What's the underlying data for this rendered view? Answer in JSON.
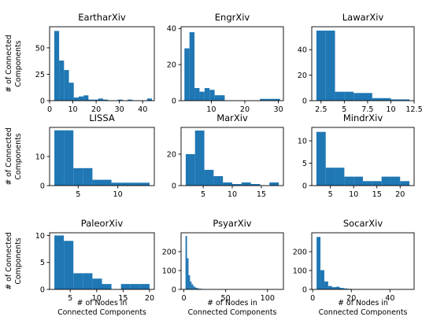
{
  "colors": {
    "bar": "#1f77b4",
    "axis": "#000000",
    "background": "#ffffff"
  },
  "shared_labels": {
    "ylabel_lines": [
      "# of Connected",
      "Components"
    ],
    "xlabel_lines": [
      "# of Nodes in",
      "Connected Components"
    ]
  },
  "chart_data": [
    {
      "type": "bar",
      "title": "EartharXiv",
      "xlim": [
        0,
        45
      ],
      "ylim": [
        0,
        70
      ],
      "xticks": [
        0,
        10,
        20,
        30,
        40
      ],
      "yticks": [
        0,
        25,
        50
      ],
      "bins": [
        {
          "x0": 2,
          "x1": 4.1,
          "y": 66
        },
        {
          "x0": 4.1,
          "x1": 6.2,
          "y": 38
        },
        {
          "x0": 6.2,
          "x1": 8.3,
          "y": 29
        },
        {
          "x0": 8.3,
          "x1": 10.4,
          "y": 17
        },
        {
          "x0": 10.4,
          "x1": 12.5,
          "y": 3
        },
        {
          "x0": 12.5,
          "x1": 14.6,
          "y": 4
        },
        {
          "x0": 14.6,
          "x1": 16.7,
          "y": 5
        },
        {
          "x0": 16.7,
          "x1": 18.8,
          "y": 1
        },
        {
          "x0": 18.8,
          "x1": 20.9,
          "y": 1
        },
        {
          "x0": 20.9,
          "x1": 23,
          "y": 2
        },
        {
          "x0": 23,
          "x1": 25.1,
          "y": 1
        },
        {
          "x0": 29.3,
          "x1": 31.4,
          "y": 1
        },
        {
          "x0": 33.5,
          "x1": 35.6,
          "y": 1
        },
        {
          "x0": 41.9,
          "x1": 44,
          "y": 2
        }
      ]
    },
    {
      "type": "bar",
      "title": "EngrXiv",
      "xlim": [
        1,
        31.5
      ],
      "ylim": [
        0,
        41
      ],
      "xticks": [
        10,
        20,
        30
      ],
      "yticks": [
        0,
        20,
        40
      ],
      "bins": [
        {
          "x0": 2,
          "x1": 3.5,
          "y": 29
        },
        {
          "x0": 3.5,
          "x1": 5,
          "y": 38
        },
        {
          "x0": 5,
          "x1": 6.5,
          "y": 7
        },
        {
          "x0": 6.5,
          "x1": 8,
          "y": 5
        },
        {
          "x0": 8,
          "x1": 9.5,
          "y": 7
        },
        {
          "x0": 9.5,
          "x1": 11,
          "y": 6
        },
        {
          "x0": 11,
          "x1": 12.5,
          "y": 3
        },
        {
          "x0": 12.5,
          "x1": 14,
          "y": 3
        },
        {
          "x0": 24.5,
          "x1": 26,
          "y": 1
        },
        {
          "x0": 26,
          "x1": 27.5,
          "y": 1
        },
        {
          "x0": 27.5,
          "x1": 29,
          "y": 1
        },
        {
          "x0": 29,
          "x1": 30.5,
          "y": 1
        }
      ]
    },
    {
      "type": "bar",
      "title": "LawarXiv",
      "xlim": [
        1.5,
        12.5
      ],
      "ylim": [
        0,
        58
      ],
      "xticks": [
        2.5,
        5.0,
        7.5,
        10.0,
        12.5
      ],
      "yticks": [
        0,
        20,
        40
      ],
      "bins": [
        {
          "x0": 2,
          "x1": 3,
          "y": 55
        },
        {
          "x0": 3,
          "x1": 4,
          "y": 55
        },
        {
          "x0": 4,
          "x1": 5,
          "y": 7
        },
        {
          "x0": 5,
          "x1": 6,
          "y": 7
        },
        {
          "x0": 6,
          "x1": 7,
          "y": 6
        },
        {
          "x0": 7,
          "x1": 8,
          "y": 6
        },
        {
          "x0": 8,
          "x1": 9,
          "y": 2
        },
        {
          "x0": 9,
          "x1": 10,
          "y": 2
        },
        {
          "x0": 10,
          "x1": 11,
          "y": 1
        },
        {
          "x0": 11,
          "x1": 12,
          "y": 1
        }
      ]
    },
    {
      "type": "bar",
      "title": "LISSA",
      "xlim": [
        1.4,
        14.6
      ],
      "ylim": [
        0,
        20
      ],
      "xticks": [
        5,
        10
      ],
      "yticks": [
        0,
        10
      ],
      "bins": [
        {
          "x0": 2,
          "x1": 3.2,
          "y": 19
        },
        {
          "x0": 3.2,
          "x1": 4.4,
          "y": 19
        },
        {
          "x0": 4.4,
          "x1": 5.6,
          "y": 6
        },
        {
          "x0": 5.6,
          "x1": 6.8,
          "y": 6
        },
        {
          "x0": 6.8,
          "x1": 8,
          "y": 2
        },
        {
          "x0": 8,
          "x1": 9.2,
          "y": 2
        },
        {
          "x0": 9.2,
          "x1": 10.4,
          "y": 1
        },
        {
          "x0": 10.4,
          "x1": 11.6,
          "y": 1
        },
        {
          "x0": 11.6,
          "x1": 12.8,
          "y": 1
        },
        {
          "x0": 12.8,
          "x1": 14,
          "y": 1
        }
      ]
    },
    {
      "type": "bar",
      "title": "MarXiv",
      "xlim": [
        1.2,
        18.8
      ],
      "ylim": [
        0,
        37
      ],
      "xticks": [
        5,
        10,
        15
      ],
      "yticks": [
        0,
        20
      ],
      "bins": [
        {
          "x0": 2,
          "x1": 3.6,
          "y": 20
        },
        {
          "x0": 3.6,
          "x1": 5.2,
          "y": 35
        },
        {
          "x0": 5.2,
          "x1": 6.8,
          "y": 10
        },
        {
          "x0": 6.8,
          "x1": 8.4,
          "y": 6
        },
        {
          "x0": 8.4,
          "x1": 10,
          "y": 2
        },
        {
          "x0": 10,
          "x1": 11.6,
          "y": 1
        },
        {
          "x0": 11.6,
          "x1": 13.2,
          "y": 2
        },
        {
          "x0": 13.2,
          "x1": 14.8,
          "y": 1
        },
        {
          "x0": 16.4,
          "x1": 18,
          "y": 2
        }
      ]
    },
    {
      "type": "bar",
      "title": "MindrXiv",
      "xlim": [
        1.0,
        23.0
      ],
      "ylim": [
        0,
        13
      ],
      "xticks": [
        5,
        10,
        15,
        20
      ],
      "yticks": [
        0,
        5,
        10
      ],
      "bins": [
        {
          "x0": 2,
          "x1": 4,
          "y": 12
        },
        {
          "x0": 4,
          "x1": 6,
          "y": 4
        },
        {
          "x0": 6,
          "x1": 8,
          "y": 4
        },
        {
          "x0": 8,
          "x1": 10,
          "y": 2
        },
        {
          "x0": 10,
          "x1": 12,
          "y": 2
        },
        {
          "x0": 12,
          "x1": 14,
          "y": 1
        },
        {
          "x0": 14,
          "x1": 16,
          "y": 1
        },
        {
          "x0": 16,
          "x1": 18,
          "y": 2
        },
        {
          "x0": 18,
          "x1": 20,
          "y": 2
        },
        {
          "x0": 20,
          "x1": 22,
          "y": 1
        }
      ]
    },
    {
      "type": "bar",
      "title": "PaleorXiv",
      "xlim": [
        1.1,
        20.9
      ],
      "ylim": [
        0,
        10.5
      ],
      "xticks": [
        5,
        10,
        15,
        20
      ],
      "yticks": [
        0,
        5,
        10
      ],
      "bins": [
        {
          "x0": 2,
          "x1": 3.8,
          "y": 10
        },
        {
          "x0": 3.8,
          "x1": 5.6,
          "y": 9
        },
        {
          "x0": 5.6,
          "x1": 7.4,
          "y": 3
        },
        {
          "x0": 7.4,
          "x1": 9.2,
          "y": 3
        },
        {
          "x0": 9.2,
          "x1": 11,
          "y": 2
        },
        {
          "x0": 11,
          "x1": 12.8,
          "y": 1
        },
        {
          "x0": 14.6,
          "x1": 16.4,
          "y": 1
        },
        {
          "x0": 16.4,
          "x1": 18.2,
          "y": 1
        },
        {
          "x0": 18.2,
          "x1": 20,
          "y": 1
        }
      ]
    },
    {
      "type": "bar",
      "title": "PsyarXiv",
      "xlim": [
        -3.3,
        119
      ],
      "ylim": [
        0,
        300
      ],
      "xticks": [
        0,
        50,
        100
      ],
      "yticks": [
        0,
        100,
        200
      ],
      "bins": [
        {
          "x0": 2,
          "x1": 3.8,
          "y": 283
        },
        {
          "x0": 3.8,
          "x1": 5.6,
          "y": 165
        },
        {
          "x0": 5.6,
          "x1": 7.4,
          "y": 75
        },
        {
          "x0": 7.4,
          "x1": 9.2,
          "y": 42
        },
        {
          "x0": 9.2,
          "x1": 11,
          "y": 28
        },
        {
          "x0": 11,
          "x1": 12.8,
          "y": 18
        },
        {
          "x0": 12.8,
          "x1": 14.6,
          "y": 11
        },
        {
          "x0": 14.6,
          "x1": 16.4,
          "y": 8
        },
        {
          "x0": 16.4,
          "x1": 18.2,
          "y": 5
        },
        {
          "x0": 18.2,
          "x1": 20,
          "y": 4
        },
        {
          "x0": 20,
          "x1": 21.8,
          "y": 3
        },
        {
          "x0": 21.8,
          "x1": 23.6,
          "y": 2
        },
        {
          "x0": 23.6,
          "x1": 25.4,
          "y": 2
        },
        {
          "x0": 25.4,
          "x1": 27.2,
          "y": 1
        },
        {
          "x0": 30.8,
          "x1": 32.6,
          "y": 1
        },
        {
          "x0": 112,
          "x1": 113.8,
          "y": 1
        }
      ]
    },
    {
      "type": "bar",
      "title": "SocarXiv",
      "xlim": [
        -0.5,
        52.5
      ],
      "ylim": [
        0,
        300
      ],
      "xticks": [
        0,
        20,
        40
      ],
      "yticks": [
        0,
        100,
        200
      ],
      "bins": [
        {
          "x0": 2,
          "x1": 4,
          "y": 278
        },
        {
          "x0": 4,
          "x1": 6,
          "y": 102
        },
        {
          "x0": 6,
          "x1": 8,
          "y": 42
        },
        {
          "x0": 8,
          "x1": 10,
          "y": 18
        },
        {
          "x0": 10,
          "x1": 12,
          "y": 12
        },
        {
          "x0": 12,
          "x1": 14,
          "y": 14
        },
        {
          "x0": 14,
          "x1": 16,
          "y": 8
        },
        {
          "x0": 16,
          "x1": 18,
          "y": 5
        },
        {
          "x0": 18,
          "x1": 20,
          "y": 3
        },
        {
          "x0": 20,
          "x1": 22,
          "y": 2
        },
        {
          "x0": 22,
          "x1": 24,
          "y": 2
        },
        {
          "x0": 24,
          "x1": 26,
          "y": 2
        },
        {
          "x0": 26,
          "x1": 28,
          "y": 1
        },
        {
          "x0": 30,
          "x1": 32,
          "y": 1
        },
        {
          "x0": 34,
          "x1": 36,
          "y": 1
        },
        {
          "x0": 48,
          "x1": 50,
          "y": 1
        }
      ]
    }
  ]
}
